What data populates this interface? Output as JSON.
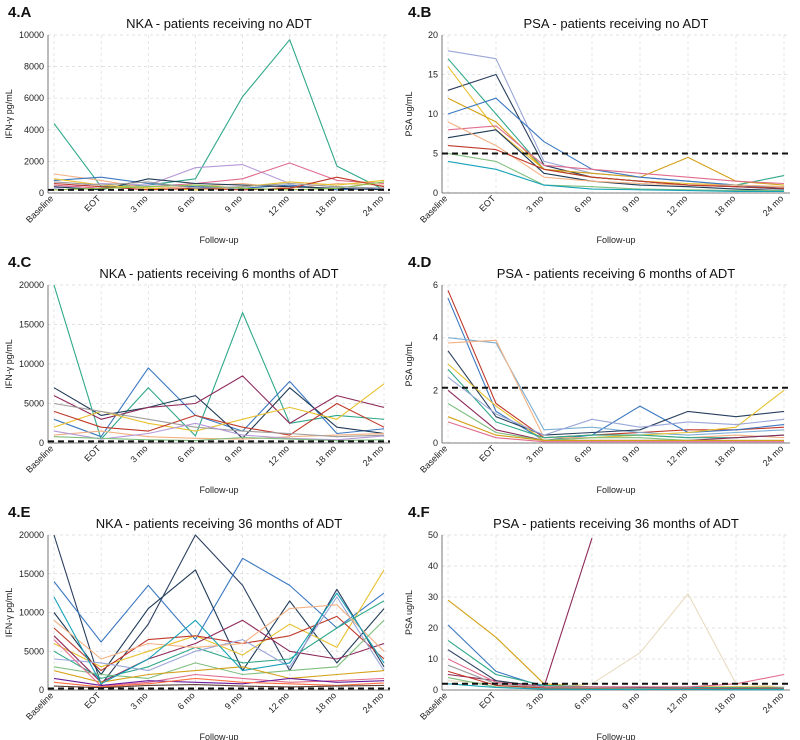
{
  "figure": {
    "x_categories": [
      "Baseline",
      "EOT",
      "3 mo",
      "6 mo",
      "9 mo",
      "12 mo",
      "18 mo",
      "24 mo"
    ]
  },
  "chart_data": [
    {
      "panel": "4.A",
      "type": "line",
      "title": "NKA - patients receiving no ADT",
      "xlabel": "Follow-up",
      "ylabel": "IFN-γ pg/mL",
      "categories": [
        "Baseline",
        "EOT",
        "3 mo",
        "6 mo",
        "9 mo",
        "12 mo",
        "18 mo",
        "24 mo"
      ],
      "ylim": [
        0,
        10000
      ],
      "yticks": [
        0,
        2000,
        4000,
        6000,
        8000,
        10000
      ],
      "threshold": 200,
      "grid": true,
      "series": [
        {
          "color": "#2fa88a",
          "values": [
            4400,
            400,
            500,
            900,
            6100,
            9700,
            1700,
            200
          ]
        },
        {
          "color": "#b59ad8",
          "values": [
            300,
            600,
            500,
            1600,
            1800,
            600,
            400,
            300
          ]
        },
        {
          "color": "#f4b183",
          "values": [
            1200,
            800,
            300,
            400,
            600,
            300,
            600,
            500
          ]
        },
        {
          "color": "#e06c8e",
          "values": [
            500,
            300,
            400,
            600,
            900,
            1900,
            800,
            600
          ]
        },
        {
          "color": "#3b78c0",
          "values": [
            800,
            1000,
            600,
            400,
            300,
            500,
            200,
            300
          ]
        },
        {
          "color": "#1f3b57",
          "values": [
            400,
            200,
            900,
            600,
            500,
            400,
            300,
            200
          ]
        },
        {
          "color": "#e8c12f",
          "values": [
            900,
            500,
            300,
            200,
            400,
            700,
            500,
            800
          ]
        },
        {
          "color": "#c0392b",
          "values": [
            600,
            400,
            200,
            300,
            200,
            300,
            1000,
            400
          ]
        },
        {
          "color": "#8bc34a",
          "values": [
            200,
            300,
            400,
            500,
            300,
            200,
            300,
            700
          ]
        },
        {
          "color": "#9e9e9e",
          "values": [
            700,
            500,
            700,
            300,
            400,
            600,
            400,
            300
          ]
        }
      ]
    },
    {
      "panel": "4.B",
      "type": "line",
      "title": "PSA - patients receiving no ADT",
      "xlabel": "Follow-up",
      "ylabel": "PSA ug/mL",
      "categories": [
        "Baseline",
        "EOT",
        "3 mo",
        "6 mo",
        "9 mo",
        "12 mo",
        "18 mo",
        "24 mo"
      ],
      "ylim": [
        0,
        20
      ],
      "yticks": [
        0,
        5,
        10,
        15,
        20
      ],
      "threshold": 5,
      "grid": true,
      "series": [
        {
          "color": "#9aa6d8",
          "values": [
            18,
            17,
            4,
            2.5,
            2,
            1.5,
            1,
            0.8
          ]
        },
        {
          "color": "#2fa88a",
          "values": [
            17,
            10,
            3,
            2,
            1.5,
            1,
            1,
            2.2
          ]
        },
        {
          "color": "#2a3f5f",
          "values": [
            13,
            15,
            3.5,
            2,
            1.5,
            1,
            0.8,
            0.5
          ]
        },
        {
          "color": "#e8c12f",
          "values": [
            16,
            8,
            3,
            2,
            1.5,
            1.2,
            1,
            0.8
          ]
        },
        {
          "color": "#d4a017",
          "values": [
            12,
            9,
            3,
            2.5,
            2,
            4.5,
            1.5,
            1
          ]
        },
        {
          "color": "#3b78c0",
          "values": [
            10,
            12,
            6.5,
            3,
            2,
            1.5,
            1,
            0.6
          ]
        },
        {
          "color": "#e06c8e",
          "values": [
            8,
            8.5,
            3.5,
            3,
            2.5,
            2,
            1.5,
            1.2
          ]
        },
        {
          "color": "#1f3b57",
          "values": [
            7,
            8,
            2.5,
            1.5,
            1,
            0.8,
            0.5,
            0.3
          ]
        },
        {
          "color": "#f4b183",
          "values": [
            9,
            6,
            2,
            1.5,
            1.2,
            1,
            1,
            0.8
          ]
        },
        {
          "color": "#c0392b",
          "values": [
            6,
            5.5,
            3,
            2,
            1.5,
            1,
            0.8,
            0.6
          ]
        },
        {
          "color": "#7fbf7f",
          "values": [
            5,
            4,
            1,
            0.8,
            0.5,
            0.4,
            0.3,
            0.3
          ]
        },
        {
          "color": "#17a2b8",
          "values": [
            4,
            3,
            1,
            0.5,
            0.4,
            0.3,
            0.2,
            0.2
          ]
        }
      ]
    },
    {
      "panel": "4.C",
      "type": "line",
      "title": "NKA - patients receiving 6 months of ADT",
      "xlabel": "Follow-up",
      "ylabel": "IFN-γ pg/mL",
      "categories": [
        "Baseline",
        "EOT",
        "3 mo",
        "6 mo",
        "9 mo",
        "12 mo",
        "18 mo",
        "24 mo"
      ],
      "ylim": [
        0,
        20000
      ],
      "yticks": [
        0,
        5000,
        10000,
        15000,
        20000
      ],
      "threshold": 200,
      "grid": true,
      "series": [
        {
          "color": "#2fa88a",
          "values": [
            20000,
            500,
            7000,
            900,
            16500,
            2500,
            3500,
            3000
          ]
        },
        {
          "color": "#3b78c0",
          "values": [
            3000,
            800,
            9500,
            3500,
            1500,
            7800,
            1200,
            1800
          ]
        },
        {
          "color": "#1f3b57",
          "values": [
            7000,
            3500,
            4500,
            6000,
            600,
            7000,
            2000,
            1200
          ]
        },
        {
          "color": "#8e2a5a",
          "values": [
            6000,
            3000,
            4500,
            5000,
            8500,
            2500,
            6000,
            4500
          ]
        },
        {
          "color": "#e8c12f",
          "values": [
            2000,
            4000,
            2500,
            1500,
            3000,
            4500,
            3000,
            7500
          ]
        },
        {
          "color": "#c0392b",
          "values": [
            4000,
            2000,
            1500,
            3500,
            2000,
            1000,
            5000,
            2000
          ]
        },
        {
          "color": "#f4b183",
          "values": [
            1000,
            1500,
            800,
            600,
            500,
            800,
            1000,
            1200
          ]
        },
        {
          "color": "#9e9e9e",
          "values": [
            5000,
            4000,
            3000,
            2000,
            1500,
            1200,
            800,
            1000
          ]
        },
        {
          "color": "#b59ad8",
          "values": [
            1500,
            500,
            1200,
            2500,
            1000,
            600,
            400,
            900
          ]
        },
        {
          "color": "#7fbf7f",
          "values": [
            800,
            600,
            400,
            300,
            700,
            500,
            300,
            400
          ]
        }
      ]
    },
    {
      "panel": "4.D",
      "type": "line",
      "title": "PSA - patients receiving 6 months of ADT",
      "xlabel": "Follow-up",
      "ylabel": "PSA ug/mL",
      "categories": [
        "Baseline",
        "EOT",
        "3 mo",
        "6 mo",
        "9 mo",
        "12 mo",
        "18 mo",
        "24 mo"
      ],
      "ylim": [
        0,
        6
      ],
      "yticks": [
        0,
        2,
        4,
        6
      ],
      "threshold": 2.1,
      "grid": true,
      "series": [
        {
          "color": "#c0392b",
          "values": [
            5.8,
            1.5,
            0.2,
            0.3,
            0.4,
            0.5,
            0.5,
            0.6
          ]
        },
        {
          "color": "#3b78c0",
          "values": [
            5.5,
            1.2,
            0.1,
            0.3,
            1.4,
            0.4,
            0.5,
            0.7
          ]
        },
        {
          "color": "#7bafd4",
          "values": [
            4.0,
            3.8,
            0.5,
            0.6,
            0.4,
            0.3,
            0.4,
            0.5
          ]
        },
        {
          "color": "#f4b183",
          "values": [
            3.8,
            3.9,
            0.2,
            0.2,
            0.3,
            0.2,
            0.3,
            0.2
          ]
        },
        {
          "color": "#2a3f5f",
          "values": [
            3.5,
            1.0,
            0.3,
            0.4,
            0.5,
            1.2,
            1.0,
            1.2
          ]
        },
        {
          "color": "#e8c12f",
          "values": [
            3.0,
            1.4,
            0.1,
            0.2,
            0.3,
            0.4,
            0.6,
            2.0
          ]
        },
        {
          "color": "#2fa88a",
          "values": [
            2.8,
            0.8,
            0.2,
            0.3,
            0.3,
            0.2,
            0.2,
            0.3
          ]
        },
        {
          "color": "#9aa6d8",
          "values": [
            2.5,
            1.1,
            0.3,
            0.9,
            0.6,
            0.8,
            0.7,
            0.9
          ]
        },
        {
          "color": "#8e2a5a",
          "values": [
            2.0,
            0.5,
            0.1,
            0.1,
            0.1,
            0.1,
            0.2,
            0.3
          ]
        },
        {
          "color": "#7fbf7f",
          "values": [
            1.5,
            0.4,
            0.1,
            0.2,
            0.2,
            0.1,
            0.1,
            0.1
          ]
        },
        {
          "color": "#d4a017",
          "values": [
            1.0,
            0.3,
            0.1,
            0.1,
            0.1,
            0.1,
            0.1,
            0.1
          ]
        },
        {
          "color": "#e06c8e",
          "values": [
            0.8,
            0.2,
            0.05,
            0.05,
            0.05,
            0.05,
            0.05,
            0.05
          ]
        }
      ]
    },
    {
      "panel": "4.E",
      "type": "line",
      "title": "NKA - patients receiving 36 months of ADT",
      "xlabel": "Follow-up",
      "ylabel": "IFN-γ pg/mL",
      "categories": [
        "Baseline",
        "EOT",
        "3 mo",
        "6 mo",
        "9 mo",
        "12 mo",
        "18 mo",
        "24 mo"
      ],
      "ylim": [
        0,
        20000
      ],
      "yticks": [
        0,
        5000,
        10000,
        15000,
        20000
      ],
      "threshold": 200,
      "grid": true,
      "series": [
        {
          "color": "#2a3f5f",
          "values": [
            20000,
            700,
            8500,
            20000,
            13500,
            2500,
            13000,
            3000
          ]
        },
        {
          "color": "#3b78c0",
          "values": [
            14000,
            6200,
            13500,
            6500,
            17000,
            13500,
            8000,
            12500
          ]
        },
        {
          "color": "#1f3b57",
          "values": [
            10000,
            2000,
            10500,
            15500,
            2500,
            11500,
            3500,
            10500
          ]
        },
        {
          "color": "#e8c12f",
          "values": [
            6000,
            3000,
            5000,
            7000,
            4500,
            8500,
            5500,
            15500
          ]
        },
        {
          "color": "#c0392b",
          "values": [
            8000,
            2500,
            6500,
            7000,
            6000,
            7000,
            9500,
            4000
          ]
        },
        {
          "color": "#2fa88a",
          "values": [
            5000,
            1500,
            3000,
            5500,
            3500,
            4000,
            8000,
            11500
          ]
        },
        {
          "color": "#8e2a5a",
          "values": [
            7000,
            1000,
            4000,
            6000,
            9000,
            5000,
            4000,
            6000
          ]
        },
        {
          "color": "#9aa6d8",
          "values": [
            4000,
            3500,
            2500,
            5000,
            6500,
            3000,
            12000,
            2500
          ]
        },
        {
          "color": "#f4b183",
          "values": [
            9000,
            4000,
            6000,
            5500,
            6000,
            10500,
            11000,
            5000
          ]
        },
        {
          "color": "#7fbf7f",
          "values": [
            3000,
            2000,
            1500,
            3500,
            2000,
            2500,
            3000,
            9000
          ]
        },
        {
          "color": "#d4a017",
          "values": [
            2500,
            1000,
            2000,
            2500,
            3000,
            1500,
            2000,
            2500
          ]
        },
        {
          "color": "#e06c8e",
          "values": [
            6500,
            500,
            1000,
            2000,
            1500,
            1000,
            1200,
            1500
          ]
        },
        {
          "color": "#17a2b8",
          "values": [
            12000,
            800,
            4000,
            9000,
            2500,
            3500,
            12500,
            3500
          ]
        },
        {
          "color": "#6a1b9a",
          "values": [
            1500,
            600,
            1200,
            1000,
            800,
            1500,
            1000,
            1200
          ]
        },
        {
          "color": "#ff7043",
          "values": [
            1000,
            400,
            800,
            1500,
            1000,
            800,
            600,
            900
          ]
        },
        {
          "color": "#5d4037",
          "values": [
            500,
            300,
            600,
            700,
            500,
            400,
            500,
            600
          ]
        }
      ]
    },
    {
      "panel": "4.F",
      "type": "line",
      "title": "PSA - patients receiving 36 months of ADT",
      "xlabel": "Follow-up",
      "ylabel": "PSA ug/mL",
      "categories": [
        "Baseline",
        "EOT",
        "3 mo",
        "6 mo",
        "9 mo",
        "12 mo",
        "18 mo",
        "24 mo"
      ],
      "ylim": [
        0,
        50
      ],
      "yticks": [
        0,
        10,
        20,
        30,
        40,
        50
      ],
      "threshold": 2,
      "grid": true,
      "series": [
        {
          "color": "#d4a017",
          "values": [
            29,
            17,
            2,
            1,
            1,
            1,
            1,
            1
          ]
        },
        {
          "color": "#8e2a5a",
          "values": [
            5,
            3,
            1,
            49,
            null,
            null,
            null,
            null
          ]
        },
        {
          "color": "#e8dcc0",
          "values": [
            3,
            2,
            1,
            2,
            12,
            31,
            2,
            1
          ]
        },
        {
          "color": "#3b78c0",
          "values": [
            21,
            6,
            1,
            1,
            1,
            0.8,
            0.7,
            0.6
          ]
        },
        {
          "color": "#2fa88a",
          "values": [
            16,
            5,
            1.5,
            1,
            0.8,
            0.7,
            0.6,
            0.5
          ]
        },
        {
          "color": "#2a3f5f",
          "values": [
            13,
            3,
            1,
            0.8,
            0.6,
            0.5,
            0.5,
            0.4
          ]
        },
        {
          "color": "#e06c8e",
          "values": [
            10,
            2.5,
            1,
            1,
            1,
            1,
            2,
            5
          ]
        },
        {
          "color": "#9e9e9e",
          "values": [
            8,
            2,
            0.8,
            0.6,
            0.5,
            0.5,
            0.4,
            0.4
          ]
        },
        {
          "color": "#c0392b",
          "values": [
            6,
            1.5,
            0.6,
            0.5,
            0.4,
            0.4,
            0.3,
            0.3
          ]
        },
        {
          "color": "#7fbf7f",
          "values": [
            4,
            1,
            0.4,
            0.3,
            0.3,
            0.2,
            0.2,
            0.2
          ]
        },
        {
          "color": "#17a2b8",
          "values": [
            2,
            0.8,
            0.3,
            0.2,
            0.2,
            0.2,
            0.1,
            0.1
          ]
        }
      ]
    }
  ]
}
